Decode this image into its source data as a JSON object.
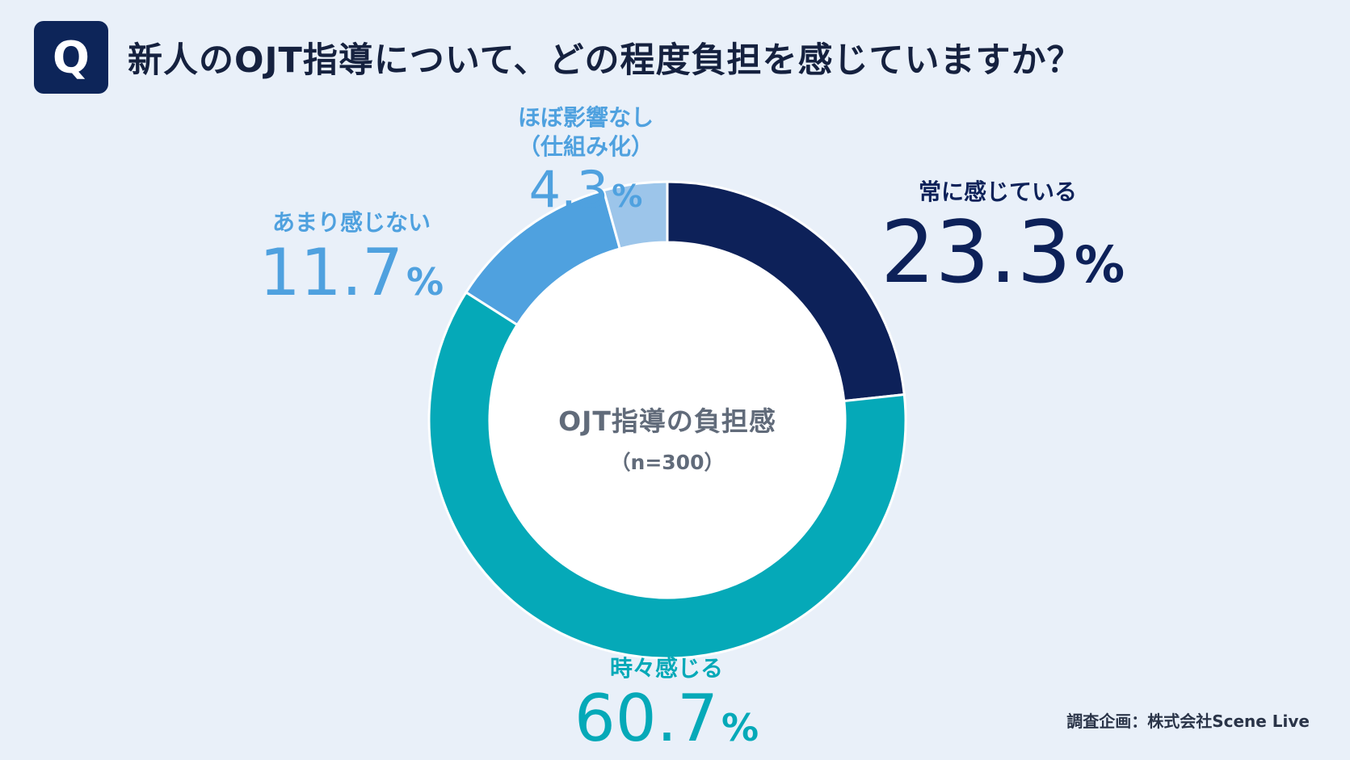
{
  "header": {
    "badge": "Q",
    "title": "新人のOJT指導について、どの程度負担を感じていますか？"
  },
  "center": {
    "title": "OJT指導の負担感",
    "n": "（n=300）"
  },
  "chart_data": {
    "type": "pie",
    "donut": true,
    "categories": [
      "常に感じている",
      "時々感じる",
      "あまり感じない",
      "ほぼ影響なし（仕組み化）"
    ],
    "values": [
      23.3,
      60.7,
      11.7,
      4.3
    ],
    "colors": [
      "#0d2159",
      "#05a9b8",
      "#4fa1df",
      "#9cc5ea"
    ]
  },
  "labels": [
    {
      "lines": [
        "常に感じている"
      ],
      "value": "23.3",
      "unit": "%",
      "color": "#0d2159"
    },
    {
      "lines": [
        "時々感じる"
      ],
      "value": "60.7",
      "unit": "%",
      "color": "#05a9b8"
    },
    {
      "lines": [
        "あまり感じない"
      ],
      "value": "11.7",
      "unit": "%",
      "color": "#4fa1df"
    },
    {
      "lines": [
        "ほぼ影響なし",
        "（仕組み化）"
      ],
      "value": "4.3",
      "unit": "%",
      "color": "#4fa1df"
    }
  ],
  "footer": "調査企画：株式会社Scene Live"
}
